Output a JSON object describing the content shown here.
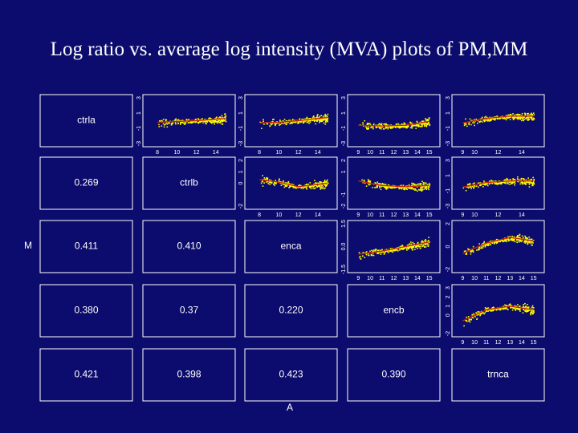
{
  "title": "Log ratio vs. average log intensity (MVA) plots of PM,MM",
  "colors": {
    "background": "#0c0c6e",
    "text": "#ffffff",
    "points": "#ffff00",
    "fit_line": "#cc2200"
  },
  "chart_data": {
    "type": "scatter",
    "layout": "pairs-matrix",
    "xlabel": "A",
    "ylabel": "M",
    "variables": [
      "ctrla",
      "ctrlb",
      "enca",
      "encb",
      "trnca"
    ],
    "lower_correlations": [
      {
        "row": 1,
        "col": 0,
        "value": "0.269"
      },
      {
        "row": 2,
        "col": 0,
        "value": "0.411"
      },
      {
        "row": 2,
        "col": 1,
        "value": "0.410"
      },
      {
        "row": 3,
        "col": 0,
        "value": "0.380"
      },
      {
        "row": 3,
        "col": 1,
        "value": "0.37"
      },
      {
        "row": 3,
        "col": 2,
        "value": "0.220"
      },
      {
        "row": 4,
        "col": 0,
        "value": "0.421"
      },
      {
        "row": 4,
        "col": 1,
        "value": "0.398"
      },
      {
        "row": 4,
        "col": 2,
        "value": "0.423"
      },
      {
        "row": 4,
        "col": 3,
        "value": "0.390"
      }
    ],
    "upper_panels": [
      {
        "row": 0,
        "col": 1,
        "yticks": [
          "-3",
          "-1",
          "1",
          "3"
        ],
        "xticks": [
          "8",
          "10",
          "12",
          "14"
        ],
        "ylim": [
          -3,
          3
        ],
        "xlim": [
          7,
          15.5
        ],
        "trend": [
          [
            8,
            -0.2
          ],
          [
            10,
            -0.1
          ],
          [
            12,
            0.0
          ],
          [
            14,
            0.2
          ],
          [
            15,
            0.3
          ]
        ]
      },
      {
        "row": 0,
        "col": 2,
        "yticks": [
          "-3",
          "-1",
          "1",
          "3"
        ],
        "xticks": [
          "8",
          "10",
          "12",
          "14"
        ],
        "ylim": [
          -3,
          3
        ],
        "xlim": [
          7,
          15.5
        ],
        "trend": [
          [
            8,
            -0.3
          ],
          [
            10,
            -0.2
          ],
          [
            12,
            0.0
          ],
          [
            14,
            0.3
          ],
          [
            15,
            0.4
          ]
        ]
      },
      {
        "row": 0,
        "col": 3,
        "yticks": [
          "-3",
          "-1",
          "1",
          "3"
        ],
        "xticks": [
          "9",
          "10",
          "11",
          "12",
          "13",
          "14",
          "15"
        ],
        "ylim": [
          -3,
          3
        ],
        "xlim": [
          8.5,
          15.5
        ],
        "trend": [
          [
            9,
            -0.6
          ],
          [
            11,
            -0.7
          ],
          [
            13,
            -0.6
          ],
          [
            15,
            -0.1
          ]
        ]
      },
      {
        "row": 0,
        "col": 4,
        "yticks": [
          "-3",
          "-1",
          "1",
          "3"
        ],
        "xticks": [
          "9",
          "10",
          "12",
          "14"
        ],
        "ylim": [
          -3,
          3
        ],
        "xlim": [
          8.5,
          15.5
        ],
        "trend": [
          [
            9,
            -0.3
          ],
          [
            11,
            0.3
          ],
          [
            13,
            0.6
          ],
          [
            15,
            0.6
          ]
        ]
      },
      {
        "row": 1,
        "col": 2,
        "yticks": [
          "-2",
          "0",
          "1",
          "2"
        ],
        "xticks": [
          "8",
          "10",
          "12",
          "14"
        ],
        "ylim": [
          -2,
          2
        ],
        "xlim": [
          7,
          15.5
        ],
        "trend": [
          [
            8,
            0.3
          ],
          [
            10,
            0.1
          ],
          [
            12,
            -0.3
          ],
          [
            14,
            -0.1
          ],
          [
            15,
            0.0
          ]
        ]
      },
      {
        "row": 1,
        "col": 3,
        "yticks": [
          "-2",
          "-1",
          "1",
          "2"
        ],
        "xticks": [
          "9",
          "10",
          "11",
          "12",
          "13",
          "14",
          "15"
        ],
        "ylim": [
          -2,
          2
        ],
        "xlim": [
          8.5,
          15.5
        ],
        "trend": [
          [
            9,
            0.2
          ],
          [
            11,
            -0.2
          ],
          [
            13,
            -0.3
          ],
          [
            15,
            -0.2
          ]
        ]
      },
      {
        "row": 1,
        "col": 4,
        "yticks": [
          "-3",
          "-1",
          "1",
          "3"
        ],
        "xticks": [
          "9",
          "10",
          "12",
          "14"
        ],
        "ylim": [
          -3,
          3
        ],
        "xlim": [
          8.5,
          15.5
        ],
        "trend": [
          [
            9,
            -0.5
          ],
          [
            11,
            0.1
          ],
          [
            13,
            0.3
          ],
          [
            15,
            0.3
          ]
        ]
      },
      {
        "row": 2,
        "col": 3,
        "yticks": [
          "-1.5",
          "0.0",
          "1.5"
        ],
        "xticks": [
          "9",
          "10",
          "11",
          "12",
          "13",
          "14",
          "15"
        ],
        "ylim": [
          -1.5,
          1.5
        ],
        "xlim": [
          8.5,
          15.5
        ],
        "trend": [
          [
            9,
            -0.5
          ],
          [
            11,
            -0.3
          ],
          [
            13,
            0.0
          ],
          [
            15,
            0.3
          ]
        ]
      },
      {
        "row": 2,
        "col": 4,
        "yticks": [
          "-2",
          "0",
          "2"
        ],
        "xticks": [
          "9",
          "10",
          "11",
          "12",
          "13",
          "14",
          "15"
        ],
        "ylim": [
          -2,
          2
        ],
        "xlim": [
          8.5,
          15.5
        ],
        "trend": [
          [
            9,
            -0.6
          ],
          [
            11,
            0.3
          ],
          [
            13,
            0.8
          ],
          [
            15,
            0.5
          ]
        ]
      },
      {
        "row": 3,
        "col": 4,
        "yticks": [
          "-2",
          "0",
          "1",
          "2",
          "3"
        ],
        "xticks": [
          "9",
          "10",
          "11",
          "12",
          "13",
          "14",
          "15"
        ],
        "ylim": [
          -2,
          3
        ],
        "xlim": [
          8.5,
          15.5
        ],
        "trend": [
          [
            9,
            -0.6
          ],
          [
            11,
            0.6
          ],
          [
            13,
            1.0
          ],
          [
            15,
            0.6
          ]
        ]
      }
    ]
  }
}
